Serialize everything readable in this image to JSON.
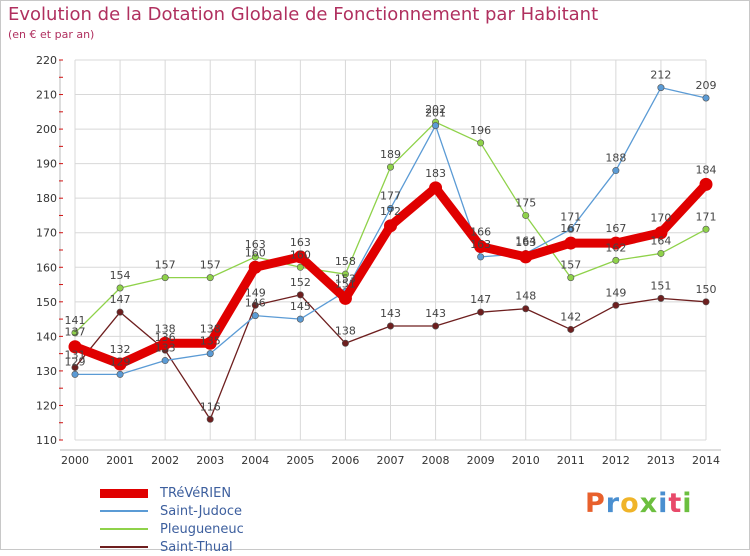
{
  "title": "Evolution de la Dotation Globale de Fonctionnement par Habitant",
  "subtitle": "(en € et par an)",
  "logo": {
    "text": "Proxiti",
    "colors": [
      "#e8602c",
      "#4a8fd0",
      "#f0b429",
      "#6cbf3f",
      "#4a8fd0",
      "#e84a6a",
      "#6cbf3f"
    ]
  },
  "colors": {
    "title": "#b0305f",
    "axis_text": "#333333",
    "grid": "#d8d8d8",
    "legend_text": "#3d5f9e"
  },
  "chart_data": {
    "type": "line",
    "title": "Evolution de la Dotation Globale de Fonctionnement par Habitant",
    "xlabel": "",
    "ylabel": "(en € et par an)",
    "x": [
      "2000",
      "2001",
      "2002",
      "2003",
      "2004",
      "2005",
      "2006",
      "2007",
      "2008",
      "2009",
      "2010",
      "2011",
      "2012",
      "2013",
      "2014"
    ],
    "ylim": [
      110,
      220
    ],
    "yticks": [
      110,
      120,
      130,
      140,
      150,
      160,
      170,
      180,
      190,
      200,
      210,
      220
    ],
    "grid": true,
    "legend_position": "bottom-left",
    "series": [
      {
        "name": "TRéVéRIEN",
        "color": "#e00000",
        "values": [
          137,
          132,
          138,
          138,
          160,
          163,
          151,
          172,
          183,
          166,
          163,
          167,
          167,
          170,
          184
        ]
      },
      {
        "name": "Saint-Judoce",
        "color": "#5b9bd5",
        "values": [
          129,
          129,
          133,
          135,
          146,
          145,
          153,
          177,
          201,
          163,
          164,
          171,
          188,
          212,
          209
        ]
      },
      {
        "name": "Pleugueneuc",
        "color": "#8fd24a",
        "values": [
          141,
          154,
          157,
          157,
          163,
          160,
          158,
          189,
          202,
          196,
          175,
          157,
          162,
          164,
          171
        ]
      },
      {
        "name": "Saint-Thual",
        "color": "#6e1f1f",
        "values": [
          131,
          147,
          136,
          116,
          149,
          152,
          138,
          143,
          143,
          147,
          148,
          142,
          149,
          151,
          150
        ]
      }
    ]
  }
}
